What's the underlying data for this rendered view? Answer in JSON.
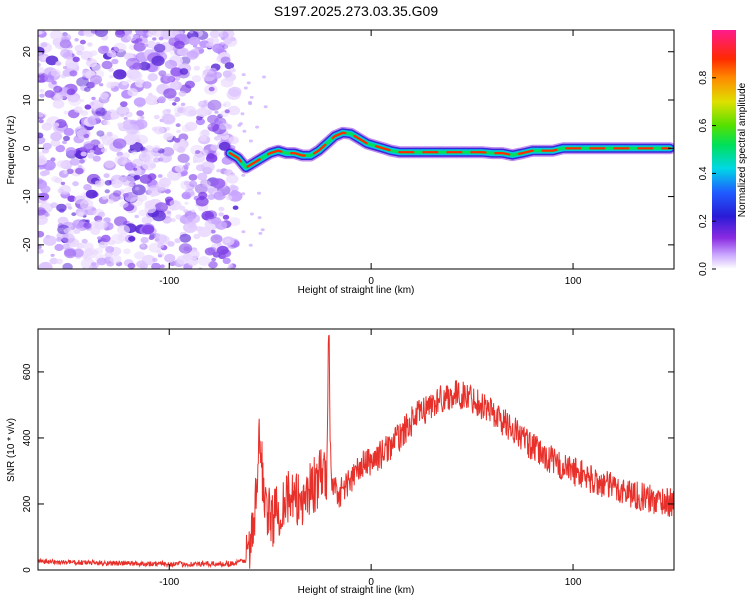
{
  "title": "S197.2025.273.03.35.G09",
  "chart_data": [
    {
      "type": "heatmap",
      "title": "S197.2025.273.03.35.G09",
      "xlabel": "Height of straight line (km)",
      "ylabel": "Frequency (Hz)",
      "xlim": [
        -165,
        150
      ],
      "ylim": [
        -25,
        24.5
      ],
      "xticks": [
        -100,
        0,
        100
      ],
      "yticks": [
        -20,
        -10,
        0,
        10,
        20
      ],
      "noise_region_x": [
        -165,
        -67
      ],
      "ridge": {
        "x": [
          -70,
          -66,
          -62,
          -58,
          -54,
          -50,
          -46,
          -42,
          -38,
          -34,
          -30,
          -26,
          -22,
          -18,
          -14,
          -10,
          -6,
          -2,
          2,
          6,
          10,
          14,
          20,
          30,
          40,
          50,
          55,
          60,
          65,
          70,
          75,
          80,
          85,
          90,
          95,
          100,
          110,
          120,
          130,
          140,
          148
        ],
        "y": [
          -1,
          -2,
          -4,
          -3,
          -2,
          -1,
          -0.5,
          -1,
          -1,
          -1.5,
          -1.5,
          -0.5,
          1,
          2.5,
          3.2,
          3,
          2,
          1,
          0.5,
          0,
          -0.5,
          -0.8,
          -0.8,
          -0.8,
          -0.8,
          -0.8,
          -0.8,
          -1,
          -1,
          -1.4,
          -1,
          -0.5,
          -0.5,
          -0.5,
          0,
          0,
          0,
          0,
          0,
          0,
          0
        ]
      },
      "colorbar": {
        "label": "Normalized spectral amplitude",
        "ticks": [
          0.0,
          0.2,
          0.4,
          0.6,
          0.8
        ],
        "tick_labels": [
          "0.0",
          "0.2",
          "0.4",
          "0.6",
          "0.8"
        ],
        "range": [
          0,
          1
        ]
      }
    },
    {
      "type": "line",
      "xlabel": "Height of straight line (km)",
      "ylabel": "SNR (10 * v/v)",
      "xlim": [
        -165,
        150
      ],
      "ylim": [
        0,
        730
      ],
      "xticks": [
        -100,
        0,
        100
      ],
      "yticks": [
        0,
        200,
        400,
        600
      ],
      "color": "#e8302a",
      "series": [
        {
          "name": "SNR",
          "x": [
            -165,
            -140,
            -120,
            -100,
            -80,
            -68,
            -62,
            -58,
            -55,
            -54,
            -52,
            -50,
            -46,
            -42,
            -38,
            -34,
            -30,
            -26,
            -22,
            -21,
            -20,
            -16,
            -12,
            -8,
            -4,
            0,
            5,
            10,
            15,
            20,
            25,
            30,
            35,
            40,
            45,
            50,
            55,
            60,
            65,
            70,
            75,
            80,
            85,
            90,
            95,
            100,
            105,
            110,
            115,
            120,
            125,
            130,
            135,
            140,
            145,
            150
          ],
          "y": [
            25,
            22,
            20,
            18,
            18,
            20,
            30,
            120,
            420,
            300,
            200,
            150,
            180,
            230,
            200,
            220,
            250,
            270,
            300,
            710,
            280,
            230,
            260,
            290,
            320,
            330,
            350,
            380,
            410,
            450,
            480,
            500,
            520,
            530,
            530,
            520,
            500,
            480,
            450,
            430,
            400,
            370,
            350,
            330,
            310,
            300,
            290,
            270,
            260,
            250,
            240,
            230,
            220,
            210,
            210,
            200
          ]
        }
      ]
    }
  ]
}
